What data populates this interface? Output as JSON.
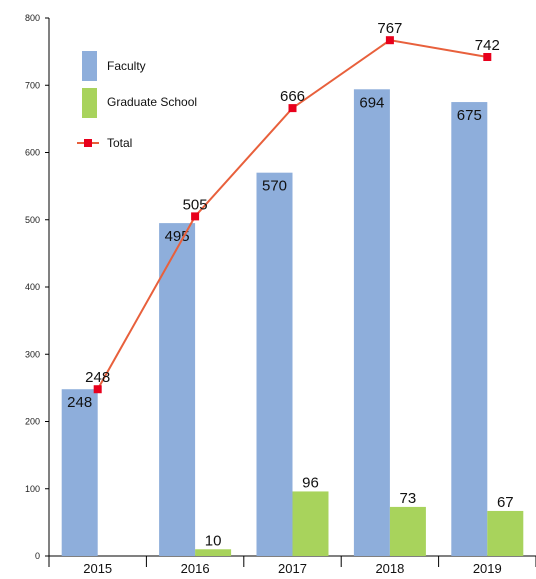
{
  "chart_data": {
    "type": "bar",
    "categories": [
      "2015",
      "2016",
      "2017",
      "2018",
      "2019"
    ],
    "series": [
      {
        "name": "Faculty",
        "type": "bar",
        "color": "#8eaedb",
        "values": [
          248,
          495,
          570,
          694,
          675
        ]
      },
      {
        "name": "Graduate School",
        "type": "bar",
        "color": "#a8d35c",
        "values": [
          null,
          10,
          96,
          73,
          67
        ]
      },
      {
        "name": "Total",
        "type": "line",
        "color": "#e8603c",
        "marker_color": "#e8001c",
        "values": [
          248,
          505,
          666,
          767,
          742
        ]
      }
    ],
    "ylim": [
      0,
      800
    ],
    "yticks": [
      0,
      100,
      200,
      300,
      400,
      500,
      600,
      700,
      800
    ],
    "grid": false,
    "legend_position": "top-left"
  }
}
